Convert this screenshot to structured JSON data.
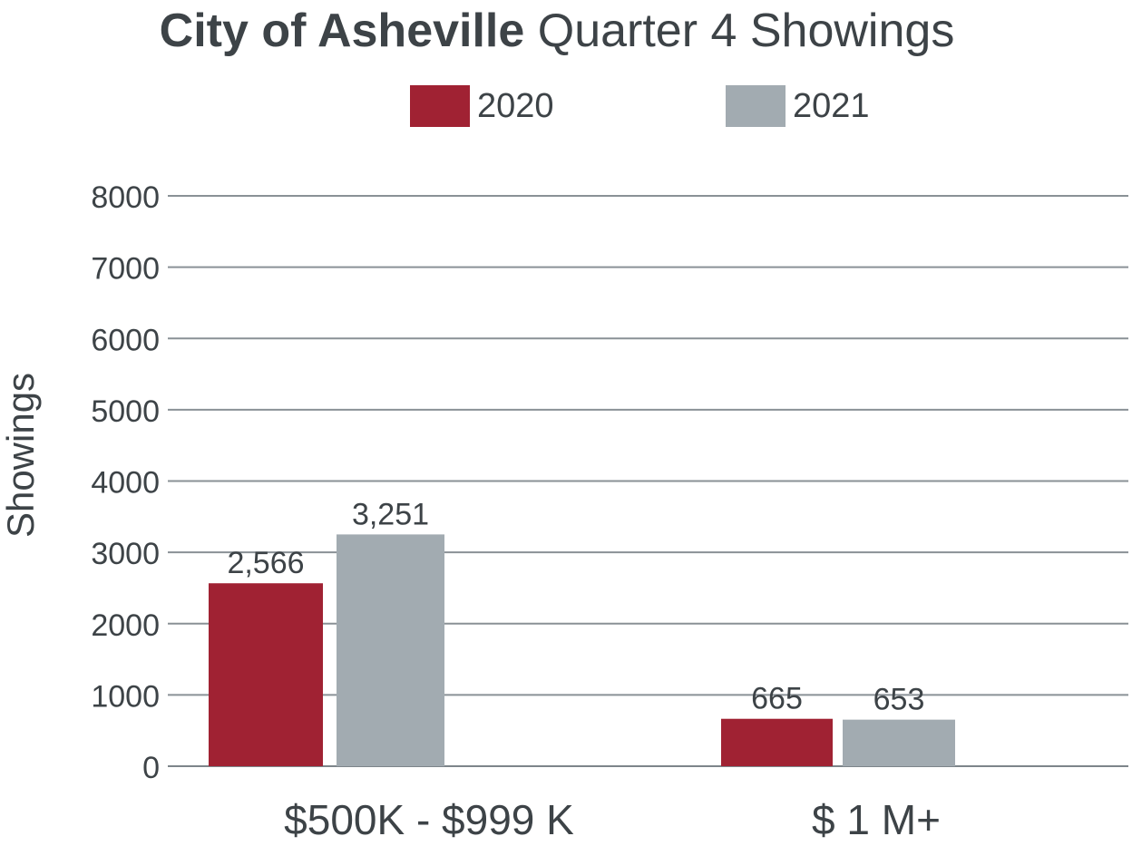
{
  "chart_data": {
    "type": "bar",
    "title_bold": "City of Asheville",
    "title_rest": "Quarter 4 Showings",
    "ylabel": "Showings",
    "xlabel": "",
    "categories": [
      "$500K - $999 K",
      "$ 1 M+"
    ],
    "series": [
      {
        "name": "2020",
        "color": "#a02233",
        "values": [
          2566,
          665
        ],
        "labels": [
          "2,566",
          "665"
        ]
      },
      {
        "name": "2021",
        "color": "#a2abb1",
        "values": [
          3251,
          653
        ],
        "labels": [
          "3,251",
          "653"
        ]
      }
    ],
    "ylim": [
      0,
      8000
    ],
    "yticks": [
      0,
      1000,
      2000,
      3000,
      4000,
      5000,
      6000,
      7000,
      8000
    ],
    "ytick_labels": [
      "0",
      "1000",
      "2000",
      "3000",
      "4000",
      "5000",
      "6000",
      "7000",
      "8000"
    ],
    "grid": true,
    "legend_position": "top-center"
  }
}
